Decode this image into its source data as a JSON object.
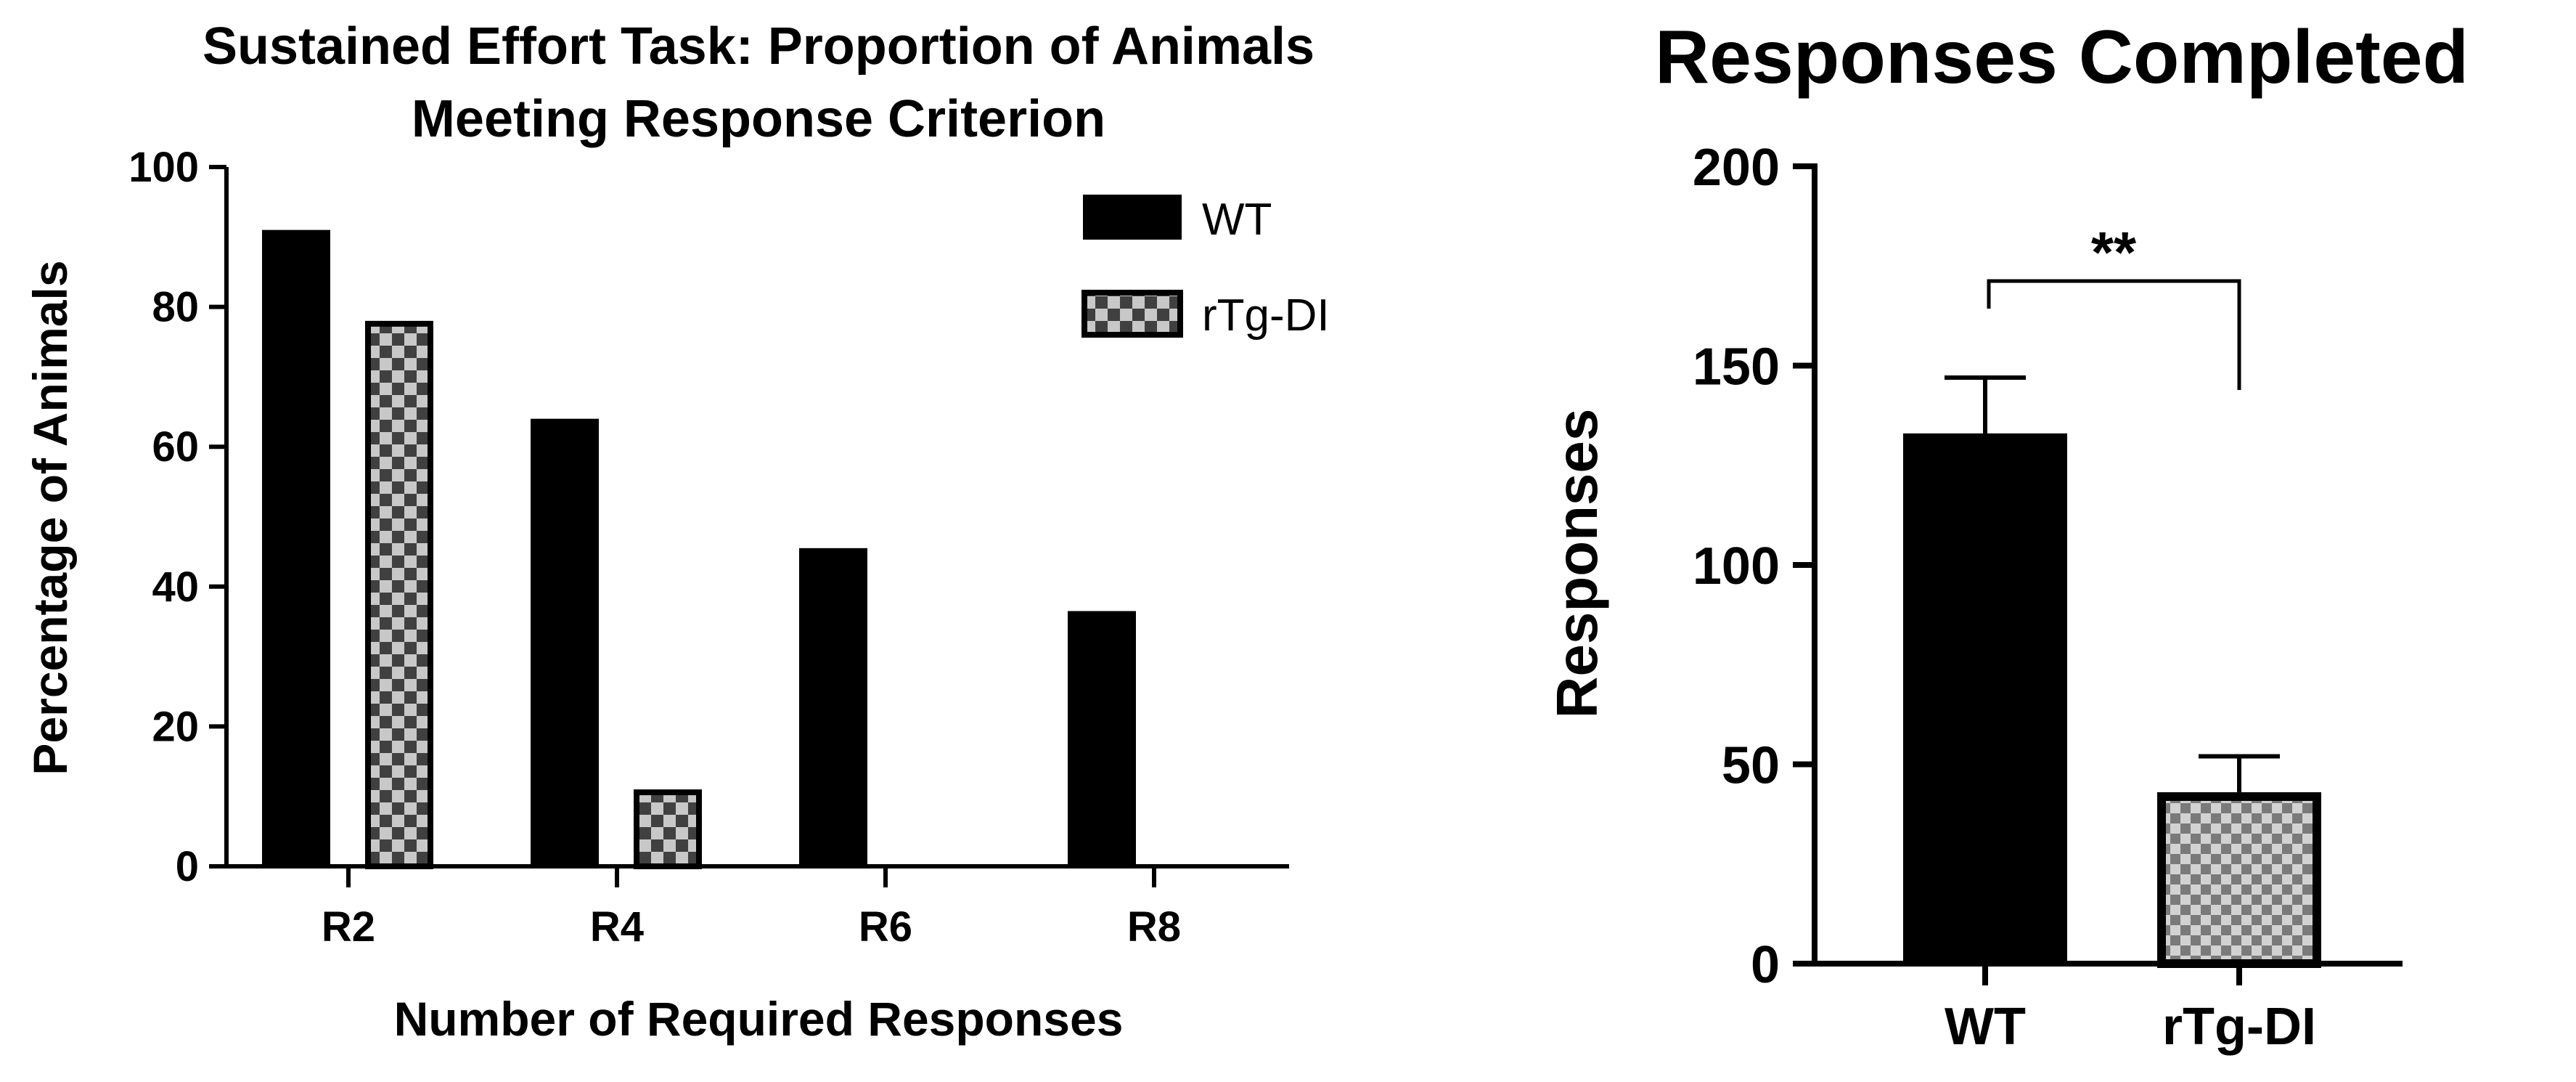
{
  "chart_data": [
    {
      "type": "bar",
      "title_lines": [
        "Sustained Effort Task: Proportion of Animals",
        "Meeting Response Criterion"
      ],
      "xlabel": "Number of Required Responses",
      "ylabel": "Percentage of Animals",
      "categories": [
        "R2",
        "R4",
        "R6",
        "R8"
      ],
      "ylim": [
        0,
        100
      ],
      "yticks": [
        0,
        20,
        40,
        60,
        80,
        100
      ],
      "series": [
        {
          "name": "WT",
          "pattern": "solid",
          "values": [
            91,
            64,
            45.5,
            36.5
          ]
        },
        {
          "name": "rTg-DI",
          "pattern": "checker",
          "values": [
            78,
            11,
            0,
            0
          ]
        }
      ],
      "legend_position": "top-right"
    },
    {
      "type": "bar",
      "title": "Responses Completed",
      "ylabel": "Responses",
      "categories": [
        "WT",
        "rTg-DI"
      ],
      "values": [
        133,
        43
      ],
      "errors": [
        14,
        9
      ],
      "patterns": [
        "solid",
        "checker"
      ],
      "ylim": [
        0,
        200
      ],
      "yticks": [
        0,
        50,
        100,
        150,
        200
      ],
      "significance": {
        "label": "**",
        "between": [
          "WT",
          "rTg-DI"
        ]
      }
    }
  ]
}
